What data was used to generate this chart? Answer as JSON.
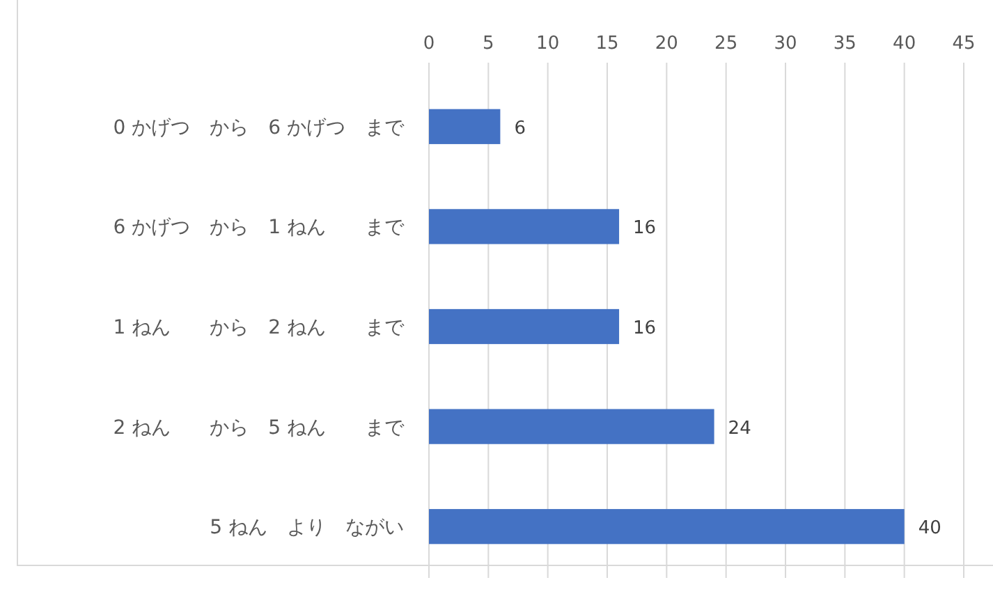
{
  "chart_data": {
    "type": "bar",
    "orientation": "horizontal",
    "categories": [
      "0 かげつ　から　6 かげつ　まで",
      "6 かげつ　から　1 ねん　　まで",
      "1 ねん　　から　2 ねん　　まで",
      "2 ねん　　から　5 ねん　　まで",
      "5 ねん　より　ながい"
    ],
    "values": [
      6,
      16,
      16,
      24,
      40
    ],
    "color": "#4472c4",
    "xlim": [
      0,
      45
    ],
    "xticks": [
      0,
      5,
      10,
      15,
      20,
      25,
      30,
      35,
      40,
      45
    ],
    "grid": "x",
    "data_labels": true
  }
}
